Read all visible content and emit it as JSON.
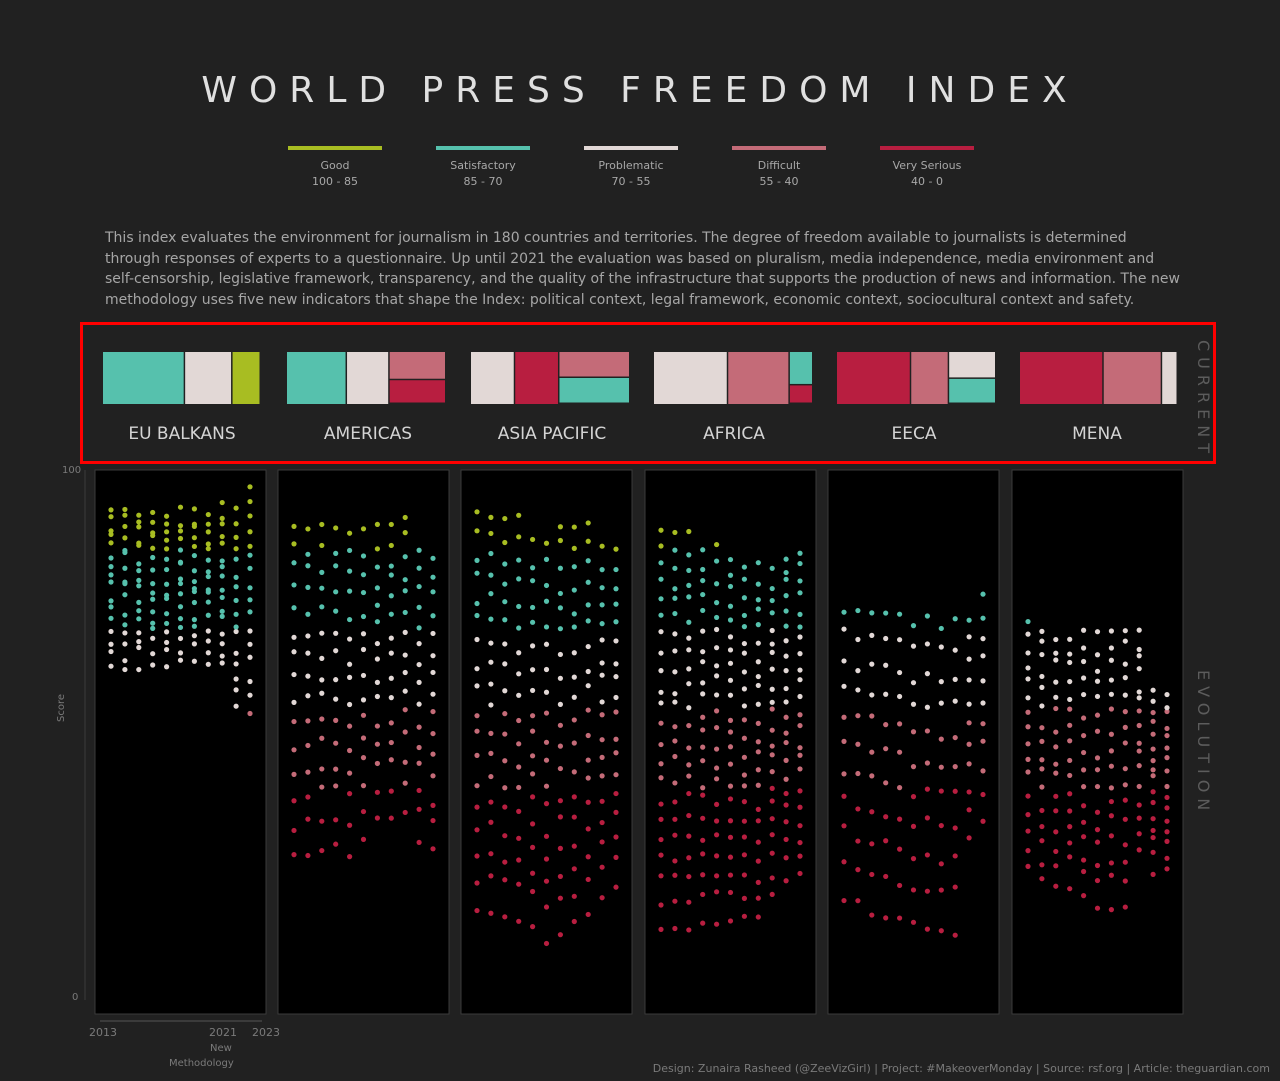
{
  "title": "WORLD PRESS FREEDOM INDEX",
  "legend": [
    {
      "label": "Good",
      "range": "100 - 85",
      "color": "#a8bd22"
    },
    {
      "label": "Satisfactory",
      "range": "85 - 70",
      "color": "#56c1ad"
    },
    {
      "label": "Problematic",
      "range": "70 - 55",
      "color": "#e2d8d6"
    },
    {
      "label": "Difficult",
      "range": "55 - 40",
      "color": "#c46b78"
    },
    {
      "label": "Very Serious",
      "range": "40 - 0",
      "color": "#b81e40"
    }
  ],
  "description": "This index evaluates the environment for journalism in 180 countries and territories. The degree of freedom available to journalists is determined through responses of experts to a questionnaire. Up until 2021 the evaluation was based on pluralism, media independence, media environment and self-censorship, legislative framework, transparency, and the quality of the infrastructure that supports the production of news and information. The new methodology uses five new indicators that shape the Index: political context, legal framework, economic context, sociocultural context and safety.",
  "side_labels": {
    "current": "CURRENT",
    "evolution": "EVOLUTION"
  },
  "axis": {
    "y_label": "Score",
    "y_max_label": "100",
    "y_min_label": "0",
    "x_start": "2013",
    "x_mid": "2021",
    "x_end": "2023",
    "note_line1": "New",
    "note_line2": "Methodology"
  },
  "credit": "Design: Zunaira Rasheed (@ZeeVizGirl) | Project: #MakeoverMonday | Source: rsf.org | Article: theguardian.com",
  "chart_data": {
    "type": "scatter",
    "title": "WORLD PRESS FREEDOM INDEX",
    "ylabel": "Score",
    "ylim": [
      0,
      100
    ],
    "x_years": [
      2013,
      2014,
      2015,
      2016,
      2017,
      2018,
      2019,
      2020,
      2021,
      2022,
      2023
    ],
    "categories": [
      "Good",
      "Satisfactory",
      "Problematic",
      "Difficult",
      "Very Serious"
    ],
    "regions": [
      {
        "name": "EU BALKANS",
        "current": [
          {
            "category": "Satisfactory",
            "share": 0.52
          },
          {
            "category": "Problematic",
            "share": 0.3
          },
          {
            "category": "Good",
            "share": 0.18
          }
        ],
        "evolution": [
          {
            "year": 2013,
            "min": 63,
            "max": 93,
            "count": 16
          },
          {
            "year": 2014,
            "min": 62,
            "max": 93,
            "count": 16
          },
          {
            "year": 2015,
            "min": 63,
            "max": 92,
            "count": 16
          },
          {
            "year": 2016,
            "min": 63,
            "max": 92,
            "count": 16
          },
          {
            "year": 2017,
            "min": 63,
            "max": 91,
            "count": 16
          },
          {
            "year": 2018,
            "min": 64,
            "max": 92,
            "count": 16
          },
          {
            "year": 2019,
            "min": 64,
            "max": 92,
            "count": 16
          },
          {
            "year": 2020,
            "min": 64,
            "max": 92,
            "count": 16
          },
          {
            "year": 2021,
            "min": 63,
            "max": 93,
            "count": 16
          },
          {
            "year": 2022,
            "min": 55,
            "max": 92,
            "count": 16
          },
          {
            "year": 2023,
            "min": 54,
            "max": 96,
            "count": 16
          }
        ]
      },
      {
        "name": "AMERICAS",
        "current": [
          {
            "category": "Satisfactory",
            "share": 0.38
          },
          {
            "category": "Problematic",
            "share": 0.27
          },
          {
            "category": "Difficult",
            "share": 0.19
          },
          {
            "category": "Very Serious",
            "share": 0.16
          }
        ],
        "evolution": [
          {
            "year": 2013,
            "min": 27,
            "max": 90,
            "count": 15
          },
          {
            "year": 2014,
            "min": 28,
            "max": 89,
            "count": 15
          },
          {
            "year": 2015,
            "min": 29,
            "max": 89,
            "count": 15
          },
          {
            "year": 2016,
            "min": 29,
            "max": 89,
            "count": 15
          },
          {
            "year": 2017,
            "min": 28,
            "max": 88,
            "count": 15
          },
          {
            "year": 2018,
            "min": 31,
            "max": 88,
            "count": 15
          },
          {
            "year": 2019,
            "min": 35,
            "max": 89,
            "count": 15
          },
          {
            "year": 2020,
            "min": 35,
            "max": 90,
            "count": 15
          },
          {
            "year": 2021,
            "min": 36,
            "max": 91,
            "count": 15
          },
          {
            "year": 2022,
            "min": 30,
            "max": 85,
            "count": 15
          },
          {
            "year": 2023,
            "min": 28,
            "max": 84,
            "count": 15
          }
        ]
      },
      {
        "name": "ASIA PACIFIC",
        "current": [
          {
            "category": "Problematic",
            "share": 0.28
          },
          {
            "category": "Very Serious",
            "share": 0.28
          },
          {
            "category": "Difficult",
            "share": 0.22
          },
          {
            "category": "Satisfactory",
            "share": 0.22
          }
        ],
        "evolution": [
          {
            "year": 2013,
            "min": 16,
            "max": 92,
            "count": 18
          },
          {
            "year": 2014,
            "min": 17,
            "max": 92,
            "count": 18
          },
          {
            "year": 2015,
            "min": 16,
            "max": 91,
            "count": 18
          },
          {
            "year": 2016,
            "min": 15,
            "max": 91,
            "count": 18
          },
          {
            "year": 2017,
            "min": 14,
            "max": 86,
            "count": 18
          },
          {
            "year": 2018,
            "min": 11,
            "max": 87,
            "count": 18
          },
          {
            "year": 2019,
            "min": 13,
            "max": 90,
            "count": 18
          },
          {
            "year": 2020,
            "min": 14,
            "max": 90,
            "count": 18
          },
          {
            "year": 2021,
            "min": 16,
            "max": 91,
            "count": 18
          },
          {
            "year": 2022,
            "min": 20,
            "max": 85,
            "count": 18
          },
          {
            "year": 2023,
            "min": 21,
            "max": 85,
            "count": 18
          }
        ]
      },
      {
        "name": "AFRICA",
        "current": [
          {
            "category": "Problematic",
            "share": 0.47
          },
          {
            "category": "Difficult",
            "share": 0.39
          },
          {
            "category": "Satisfactory",
            "share": 0.09
          },
          {
            "category": "Very Serious",
            "share": 0.05
          }
        ],
        "evolution": [
          {
            "year": 2013,
            "min": 14,
            "max": 88,
            "count": 22
          },
          {
            "year": 2014,
            "min": 14,
            "max": 88,
            "count": 22
          },
          {
            "year": 2015,
            "min": 14,
            "max": 88,
            "count": 22
          },
          {
            "year": 2016,
            "min": 15,
            "max": 85,
            "count": 22
          },
          {
            "year": 2017,
            "min": 15,
            "max": 85,
            "count": 22
          },
          {
            "year": 2018,
            "min": 15,
            "max": 84,
            "count": 22
          },
          {
            "year": 2019,
            "min": 15,
            "max": 82,
            "count": 22
          },
          {
            "year": 2020,
            "min": 15,
            "max": 82,
            "count": 22
          },
          {
            "year": 2021,
            "min": 20,
            "max": 81,
            "count": 22
          },
          {
            "year": 2022,
            "min": 22,
            "max": 84,
            "count": 22
          },
          {
            "year": 2023,
            "min": 23,
            "max": 84,
            "count": 22
          }
        ]
      },
      {
        "name": "EECA",
        "current": [
          {
            "category": "Very Serious",
            "share": 0.47
          },
          {
            "category": "Difficult",
            "share": 0.24
          },
          {
            "category": "Problematic",
            "share": 0.15
          },
          {
            "category": "Satisfactory",
            "share": 0.14
          }
        ],
        "evolution": [
          {
            "year": 2013,
            "min": 19,
            "max": 74,
            "count": 11
          },
          {
            "year": 2014,
            "min": 18,
            "max": 73,
            "count": 11
          },
          {
            "year": 2015,
            "min": 17,
            "max": 74,
            "count": 11
          },
          {
            "year": 2016,
            "min": 16,
            "max": 73,
            "count": 11
          },
          {
            "year": 2017,
            "min": 15,
            "max": 73,
            "count": 11
          },
          {
            "year": 2018,
            "min": 14,
            "max": 71,
            "count": 11
          },
          {
            "year": 2019,
            "min": 14,
            "max": 72,
            "count": 11
          },
          {
            "year": 2020,
            "min": 13,
            "max": 71,
            "count": 11
          },
          {
            "year": 2021,
            "min": 13,
            "max": 72,
            "count": 11
          },
          {
            "year": 2022,
            "min": 30,
            "max": 72,
            "count": 11
          },
          {
            "year": 2023,
            "min": 33,
            "max": 77,
            "count": 11
          }
        ]
      },
      {
        "name": "MENA",
        "current": [
          {
            "category": "Very Serious",
            "share": 0.53
          },
          {
            "category": "Difficult",
            "share": 0.37
          },
          {
            "category": "Problematic",
            "share": 0.1
          }
        ],
        "evolution": [
          {
            "year": 2013,
            "min": 25,
            "max": 71,
            "count": 16
          },
          {
            "year": 2014,
            "min": 22,
            "max": 70,
            "count": 16
          },
          {
            "year": 2015,
            "min": 21,
            "max": 69,
            "count": 16
          },
          {
            "year": 2016,
            "min": 22,
            "max": 69,
            "count": 16
          },
          {
            "year": 2017,
            "min": 19,
            "max": 69,
            "count": 16
          },
          {
            "year": 2018,
            "min": 17,
            "max": 69,
            "count": 16
          },
          {
            "year": 2019,
            "min": 18,
            "max": 70,
            "count": 16
          },
          {
            "year": 2020,
            "min": 18,
            "max": 70,
            "count": 16
          },
          {
            "year": 2021,
            "min": 28,
            "max": 69,
            "count": 16
          },
          {
            "year": 2022,
            "min": 24,
            "max": 59,
            "count": 16
          },
          {
            "year": 2023,
            "min": 24,
            "max": 58,
            "count": 16
          }
        ]
      }
    ]
  }
}
